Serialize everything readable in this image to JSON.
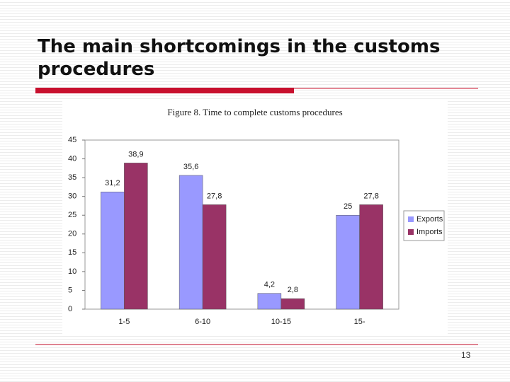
{
  "slide": {
    "title": "The main shortcomings in the customs procedures",
    "page_number": 13
  },
  "chart_data": {
    "type": "bar",
    "title": "Figure 8. Time to complete customs procedures",
    "categories": [
      "1-5",
      "6-10",
      "10-15",
      "15-"
    ],
    "series": [
      {
        "name": "Exports",
        "color": "#9999ff",
        "values": [
          31.2,
          35.6,
          4.2,
          25
        ],
        "value_labels": [
          "31,2",
          "35,6",
          "4,2",
          "25"
        ]
      },
      {
        "name": "Imports",
        "color": "#993366",
        "values": [
          38.9,
          27.8,
          2.8,
          27.8
        ],
        "value_labels": [
          "38,9",
          "27,8",
          "2,8",
          "27,8"
        ]
      }
    ],
    "ylim": [
      0,
      45
    ],
    "yticks": [
      0,
      5,
      10,
      15,
      20,
      25,
      30,
      35,
      40,
      45
    ],
    "legend": "right"
  }
}
